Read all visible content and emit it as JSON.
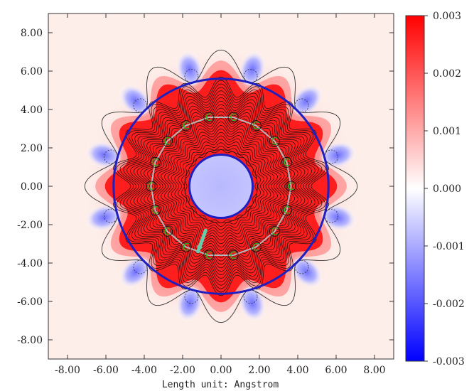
{
  "chart_data": {
    "type": "heatmap",
    "title": "",
    "xlabel": "Length unit: Angstrom",
    "ylabel": "",
    "xlim": [
      -9.0,
      9.0
    ],
    "ylim": [
      -9.0,
      9.0
    ],
    "x_ticks": [
      -8,
      -6,
      -4,
      -2,
      0,
      2,
      4,
      6,
      8
    ],
    "y_ticks": [
      -8,
      -6,
      -4,
      -2,
      0,
      2,
      4,
      6,
      8
    ],
    "x_tick_labels": [
      "-8.00",
      "-6.00",
      "-4.00",
      "-2.00",
      "0.00",
      "2.00",
      "4.00",
      "6.00",
      "8.00"
    ],
    "y_tick_labels": [
      "8.00",
      "6.00",
      "4.00",
      "2.00",
      "0.00",
      "-2.00",
      "-4.00",
      "-6.00",
      "-8.00"
    ],
    "colorbar": {
      "range": [
        -0.003,
        0.003
      ],
      "ticks": [
        0.003,
        0.002,
        0.001,
        0.0,
        -0.001,
        -0.002,
        -0.003
      ],
      "tick_labels": [
        "0.003",
        "0.002",
        "0.001",
        "0.000",
        "-0.001",
        "-0.002",
        "-0.003"
      ],
      "colors": {
        "high": "#ff0000",
        "mid": "#ffffff",
        "low": "#0000ff"
      }
    },
    "atoms": {
      "element": "C",
      "label_color": "#22bb22",
      "ring_color": "#b8b8b8",
      "ring_radius": 3.65,
      "count": 18,
      "angles_deg": [
        100,
        80,
        60,
        40,
        20,
        0,
        -20,
        -40,
        -60,
        -80,
        -100,
        -120,
        -140,
        -160,
        180,
        160,
        140,
        120
      ]
    },
    "outer_boundary_radius": 5.6,
    "inner_boundary_radius": 1.65,
    "boundary_color": "#1f1fbf",
    "annotation_arrow": {
      "from": [
        -0.8,
        -2.3
      ],
      "to": [
        -1.2,
        -3.4
      ],
      "color": "#66ccaa"
    }
  }
}
